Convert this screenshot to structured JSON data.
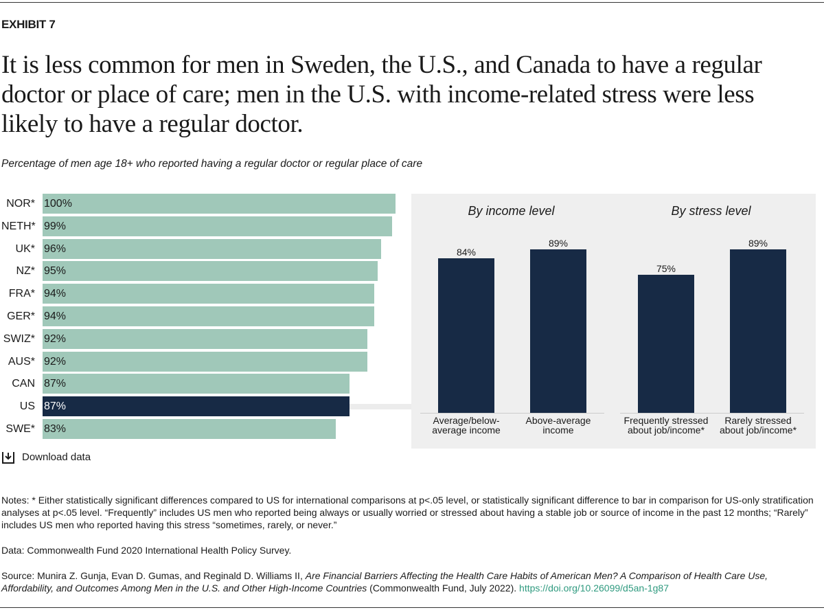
{
  "exhibit": "EXHIBIT 7",
  "title": "It is less common for men in Sweden, the U.S., and Canada to have a regular doctor or place of care; men in the U.S. with income-related stress were less likely to have a regular doctor.",
  "subtitle": "Percentage of men age 18+ who reported having a regular doctor or regular place of care",
  "chart_data": [
    {
      "type": "bar",
      "orientation": "horizontal",
      "categories": [
        "NOR*",
        "NETH*",
        "UK*",
        "NZ*",
        "FRA*",
        "GER*",
        "SWIZ*",
        "AUS*",
        "CAN",
        "US",
        "SWE*"
      ],
      "values": [
        100,
        99,
        96,
        95,
        94,
        94,
        92,
        92,
        87,
        87,
        83
      ],
      "value_labels": [
        "100%",
        "99%",
        "96%",
        "95%",
        "94%",
        "94%",
        "92%",
        "92%",
        "87%",
        "87%",
        "83%"
      ],
      "colors": [
        "#a0c8b9",
        "#a0c8b9",
        "#a0c8b9",
        "#a0c8b9",
        "#a0c8b9",
        "#a0c8b9",
        "#a0c8b9",
        "#a0c8b9",
        "#a0c8b9",
        "#172a45",
        "#a0c8b9"
      ]
    },
    {
      "type": "bar",
      "title": "By income level",
      "categories": [
        "Average/below-average income",
        "Above-average income"
      ],
      "values": [
        84,
        89
      ],
      "value_labels": [
        "84%",
        "89%"
      ],
      "color": "#172a45"
    },
    {
      "type": "bar",
      "title": "By stress level",
      "categories": [
        "Frequently stressed about job/income*",
        "Rarely stressed about job/income*"
      ],
      "values": [
        75,
        89
      ],
      "value_labels": [
        "75%",
        "89%"
      ],
      "color": "#172a45"
    }
  ],
  "download": "Download data",
  "notes": "Notes: * Either statistically significant differences compared to US for international comparisons at p<.05 level, or statistically significant difference to bar in comparison for US-only stratification analyses at p<.05 level. “Frequently” includes US men who reported being always or usually worried or stressed about having a stable job or source of income in the past 12 months; “Rarely” includes US men who reported having this stress “sometimes, rarely, or never.”",
  "data_source": "Data: Commonwealth Fund 2020 International Health Policy Survey.",
  "source": {
    "prefix": "Source: Munira Z. Gunja, Evan D. Gumas, and Reginald D. Williams II,",
    "publication": "Are Financial Barriers Affecting the Health Care Habits of American Men? A Comparison of Health Care Use, Affordability, and Outcomes Among Men in the U.S. and Other High-Income Countries",
    "suffix": "(Commonwealth Fund, July 2022).",
    "link": "https://doi.org/10.26099/d5an-1g87"
  }
}
